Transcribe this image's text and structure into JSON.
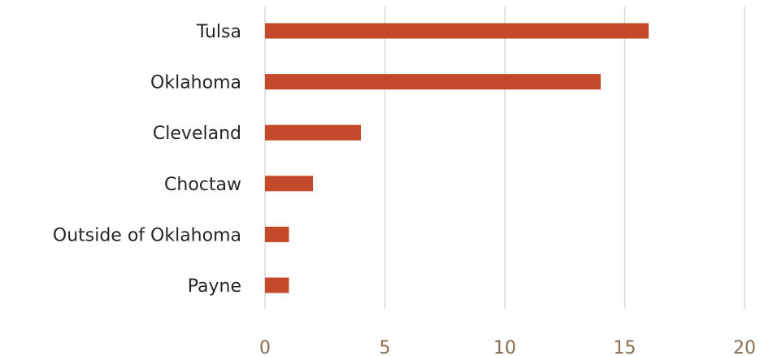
{
  "chart_data": {
    "type": "bar",
    "orientation": "horizontal",
    "categories": [
      "Tulsa",
      "Oklahoma",
      "Cleveland",
      "Choctaw",
      "Outside of Oklahoma",
      "Payne"
    ],
    "values": [
      16,
      14,
      4,
      2,
      1,
      1
    ],
    "xlim": [
      0,
      20
    ],
    "x_ticks": [
      "0",
      "5",
      "10",
      "15",
      "20"
    ],
    "grid": true,
    "legend": false,
    "colors": {
      "bar": "#c4492b",
      "grid": "#d9d9d9",
      "category_text": "#262626",
      "tick_text": "#8a6d50"
    }
  }
}
